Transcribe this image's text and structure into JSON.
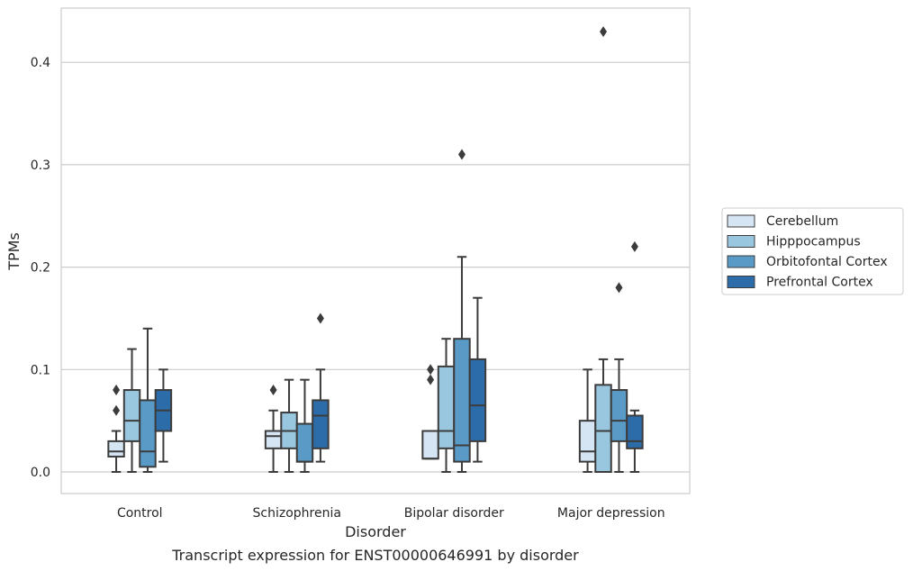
{
  "chart_data": {
    "type": "box",
    "caption": "Transcript expression for ENST00000646991 by disorder",
    "xlabel": "Disorder",
    "ylabel": "TPMs",
    "ylim": [
      -0.02,
      0.455
    ],
    "yticks": [
      0.0,
      0.1,
      0.2,
      0.3,
      0.4
    ],
    "ytick_labels": [
      "0.0",
      "0.1",
      "0.2",
      "0.3",
      "0.4"
    ],
    "grid": "horizontal",
    "legend_position": "right",
    "categories": [
      "Control",
      "Schizophrenia",
      "Bipolar disorder",
      "Major depression"
    ],
    "series": [
      {
        "name": "Cerebellum",
        "color": "#d6e5f4",
        "boxes": [
          {
            "whislo": 0.0,
            "q1": 0.015,
            "med": 0.02,
            "q3": 0.03,
            "whishi": 0.04,
            "fliers": [
              0.06,
              0.08
            ]
          },
          {
            "whislo": 0.0,
            "q1": 0.023,
            "med": 0.035,
            "q3": 0.04,
            "whishi": 0.06,
            "fliers": [
              0.08
            ]
          },
          {
            "whislo": 0.013,
            "q1": 0.013,
            "med": 0.013,
            "q3": 0.04,
            "whishi": 0.04,
            "fliers": [
              0.09,
              0.1
            ]
          },
          {
            "whislo": 0.0,
            "q1": 0.01,
            "med": 0.02,
            "q3": 0.05,
            "whishi": 0.1,
            "fliers": []
          }
        ]
      },
      {
        "name": "Hipppocampus",
        "color": "#9ac7e0",
        "boxes": [
          {
            "whislo": 0.0,
            "q1": 0.03,
            "med": 0.05,
            "q3": 0.08,
            "whishi": 0.12,
            "fliers": []
          },
          {
            "whislo": 0.0,
            "q1": 0.023,
            "med": 0.04,
            "q3": 0.058,
            "whishi": 0.09,
            "fliers": []
          },
          {
            "whislo": 0.0,
            "q1": 0.023,
            "med": 0.04,
            "q3": 0.103,
            "whishi": 0.13,
            "fliers": []
          },
          {
            "whislo": 0.0,
            "q1": 0.0,
            "med": 0.04,
            "q3": 0.085,
            "whishi": 0.11,
            "fliers": [
              0.43
            ]
          }
        ]
      },
      {
        "name": "Orbitofontal Cortex",
        "color": "#5a9ac7",
        "boxes": [
          {
            "whislo": 0.0,
            "q1": 0.005,
            "med": 0.02,
            "q3": 0.07,
            "whishi": 0.14,
            "fliers": []
          },
          {
            "whislo": 0.0,
            "q1": 0.01,
            "med": 0.01,
            "q3": 0.047,
            "whishi": 0.09,
            "fliers": []
          },
          {
            "whislo": 0.0,
            "q1": 0.01,
            "med": 0.026,
            "q3": 0.13,
            "whishi": 0.21,
            "fliers": [
              0.31
            ]
          },
          {
            "whislo": 0.0,
            "q1": 0.03,
            "med": 0.05,
            "q3": 0.08,
            "whishi": 0.11,
            "fliers": [
              0.18
            ]
          }
        ]
      },
      {
        "name": "Prefrontal Cortex",
        "color": "#2c6ca9",
        "boxes": [
          {
            "whislo": 0.01,
            "q1": 0.04,
            "med": 0.06,
            "q3": 0.08,
            "whishi": 0.1,
            "fliers": []
          },
          {
            "whislo": 0.01,
            "q1": 0.023,
            "med": 0.055,
            "q3": 0.07,
            "whishi": 0.1,
            "fliers": [
              0.15
            ]
          },
          {
            "whislo": 0.01,
            "q1": 0.03,
            "med": 0.065,
            "q3": 0.11,
            "whishi": 0.17,
            "fliers": []
          },
          {
            "whislo": 0.0,
            "q1": 0.023,
            "med": 0.03,
            "q3": 0.055,
            "whishi": 0.06,
            "fliers": [
              0.22
            ]
          }
        ]
      }
    ]
  }
}
